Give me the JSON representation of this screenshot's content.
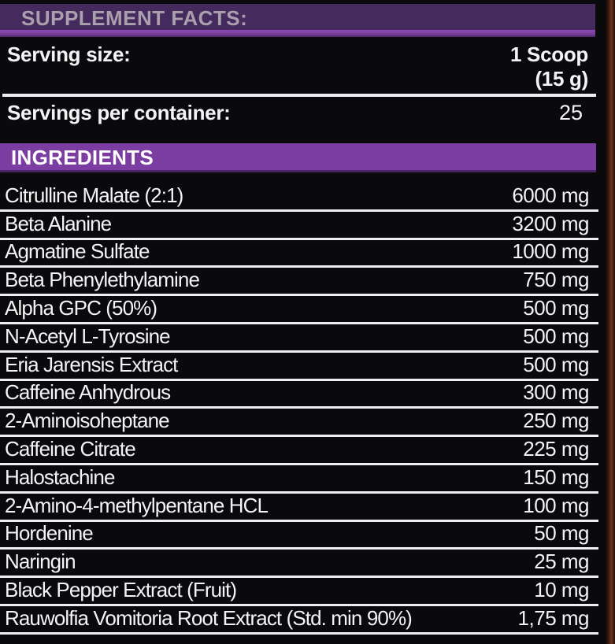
{
  "header": {
    "title": "SUPPLEMENT FACTS:"
  },
  "serving": {
    "size_label": "Serving size:",
    "size_value_line1": "1 Scoop",
    "size_value_line2": "(15 g)",
    "per_container_label": "Servings per container:",
    "per_container_value": "25"
  },
  "ingredients_section": {
    "title": "INGREDIENTS"
  },
  "ingredients": [
    {
      "name": "Citrulline Malate (2:1)",
      "amount": "6000 mg"
    },
    {
      "name": "Beta Alanine",
      "amount": "3200 mg"
    },
    {
      "name": "Agmatine Sulfate",
      "amount": "1000 mg"
    },
    {
      "name": "Beta Phenylethylamine",
      "amount": "750 mg"
    },
    {
      "name": "Alpha GPC (50%)",
      "amount": "500 mg"
    },
    {
      "name": "N-Acetyl L-Tyrosine",
      "amount": "500 mg"
    },
    {
      "name": "Eria Jarensis Extract",
      "amount": "500 mg"
    },
    {
      "name": "Caffeine Anhydrous",
      "amount": "300 mg"
    },
    {
      "name": "2-Aminoisoheptane",
      "amount": "250 mg"
    },
    {
      "name": "Caffeine Citrate",
      "amount": "225 mg"
    },
    {
      "name": "Halostachine",
      "amount": "150 mg"
    },
    {
      "name": "2-Amino-4-methylpentane HCL",
      "amount": "100 mg"
    },
    {
      "name": "Hordenine",
      "amount": "50 mg"
    },
    {
      "name": "Naringin",
      "amount": "25 mg"
    },
    {
      "name": "Black Pepper Extract (Fruit)",
      "amount": "10 mg"
    },
    {
      "name": "Rauwolfia Vomitoria Root Extract (Std. min 90%)",
      "amount": "1,75 mg"
    }
  ],
  "colors": {
    "bg": "#0a090b",
    "header_bar": "#452a5e",
    "header_accent": "#7e3cab",
    "header_text": "#a99fad",
    "ingredients_bar": "#7c3da2",
    "text": "#f5f3f5",
    "rule": "#f0eef0",
    "edge_strip": "#5e2d1e"
  }
}
